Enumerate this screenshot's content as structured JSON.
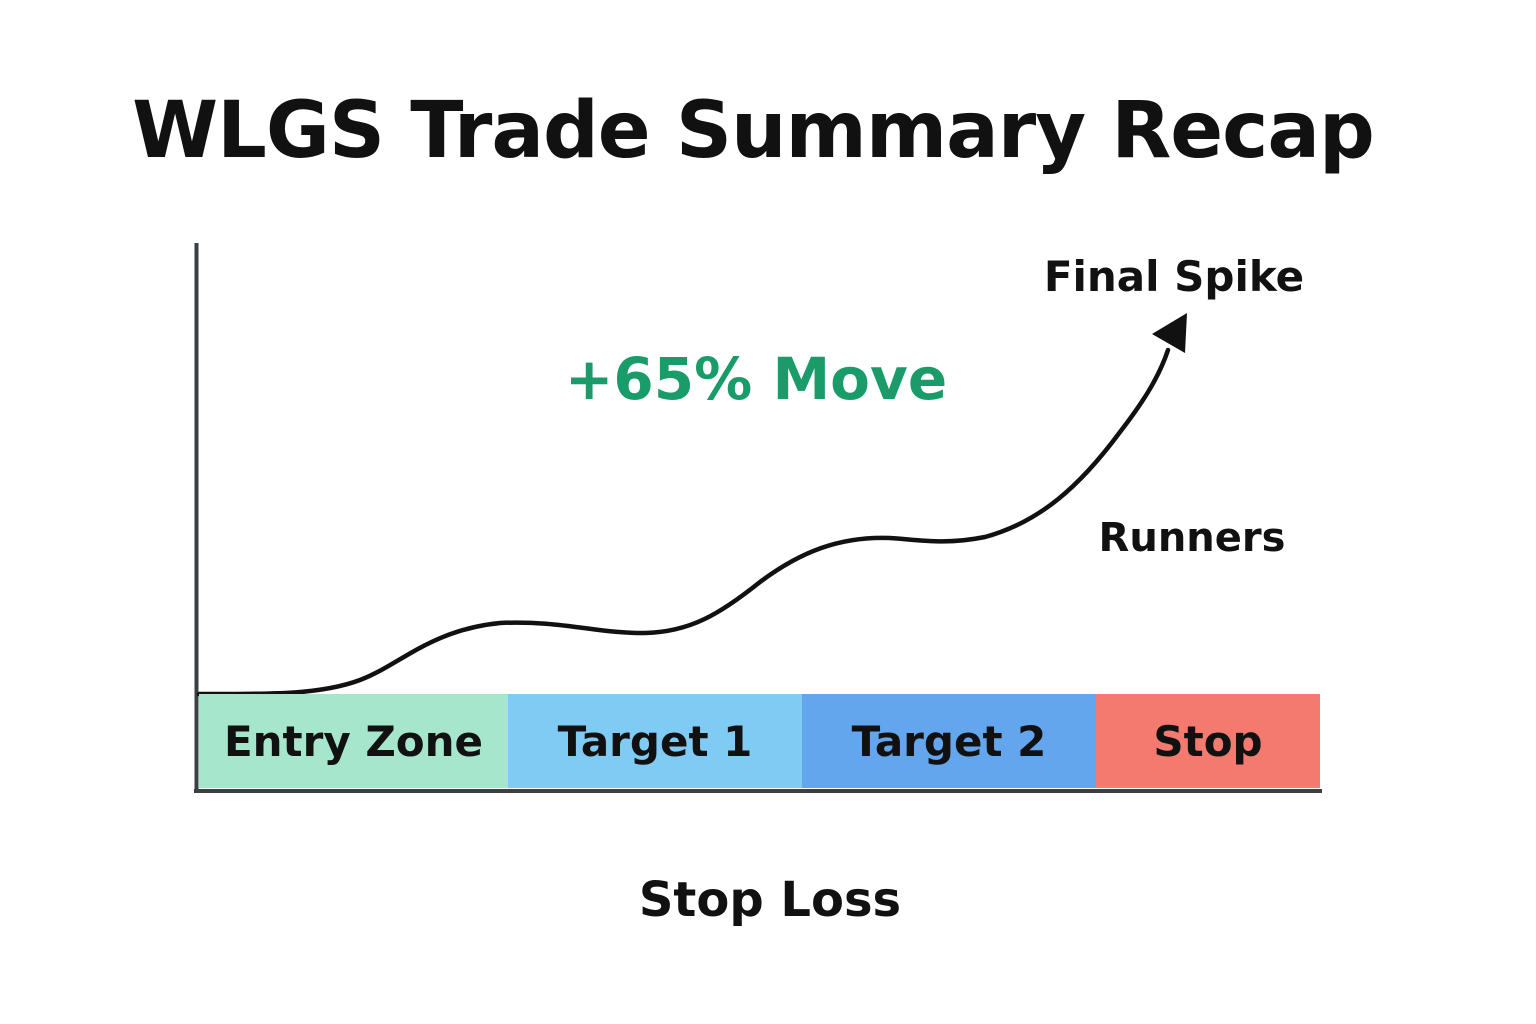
{
  "title": "WLGS Trade Summary Recap",
  "annotations": {
    "move": "+65% Move",
    "final_spike": "Final Spike",
    "runners": "Runners"
  },
  "zones": [
    {
      "label": "Entry Zone",
      "color": "#a6e6cc"
    },
    {
      "label": "Target 1",
      "color": "#80cbf4"
    },
    {
      "label": "Target 2",
      "color": "#63a6ee"
    },
    {
      "label": "Stop",
      "color": "#f47a70"
    }
  ],
  "footer": "Stop Loss",
  "colors": {
    "move_text": "#1a9c6a",
    "axis": "#3a3f44",
    "curve": "#111111"
  },
  "icons": {
    "curve_head": "arrow-head-icon"
  }
}
